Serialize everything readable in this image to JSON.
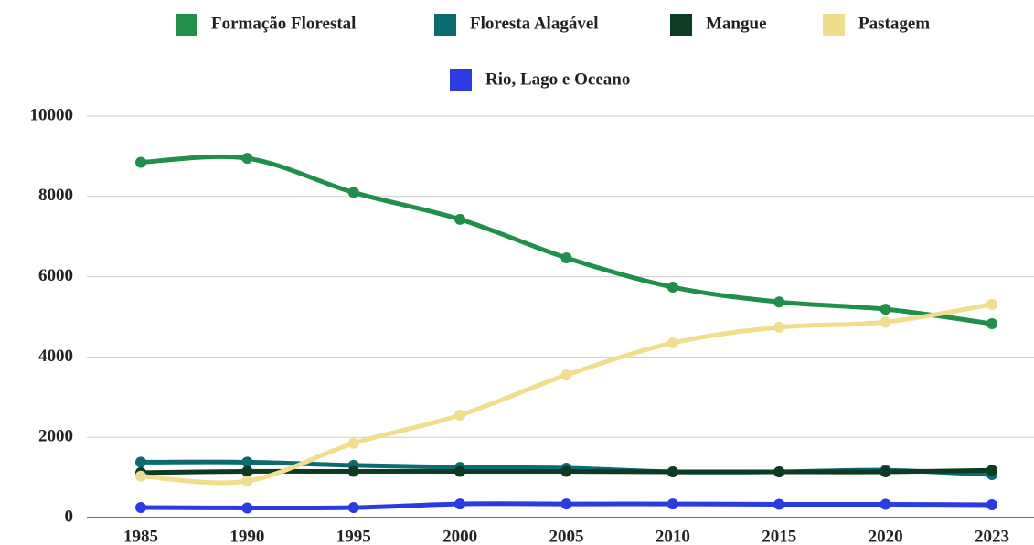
{
  "chart_data": {
    "type": "line",
    "categories": [
      "1985",
      "1990",
      "1995",
      "2000",
      "2005",
      "2010",
      "2015",
      "2020",
      "2023"
    ],
    "series": [
      {
        "name": "Formação Florestal",
        "color": "#1f8f4b",
        "values": [
          8850,
          8950,
          8100,
          7430,
          6470,
          5740,
          5370,
          5190,
          4830
        ]
      },
      {
        "name": "Floresta Alagável",
        "color": "#0b6b70",
        "values": [
          1380,
          1380,
          1300,
          1250,
          1230,
          1140,
          1140,
          1180,
          1070
        ]
      },
      {
        "name": "Mangue",
        "color": "#0c3a22",
        "values": [
          1120,
          1150,
          1150,
          1150,
          1150,
          1140,
          1140,
          1140,
          1180
        ]
      },
      {
        "name": "Pastagem",
        "color": "#f0dd8d",
        "values": [
          1030,
          910,
          1850,
          2550,
          3550,
          4350,
          4740,
          4870,
          5310
        ]
      },
      {
        "name": "Rio, Lago e Oceano",
        "color": "#2a3be0",
        "values": [
          250,
          240,
          250,
          340,
          340,
          340,
          330,
          330,
          320
        ]
      }
    ],
    "ylim": [
      0,
      10000
    ],
    "yticks": [
      0,
      2000,
      4000,
      6000,
      8000,
      10000
    ],
    "grid": true
  }
}
